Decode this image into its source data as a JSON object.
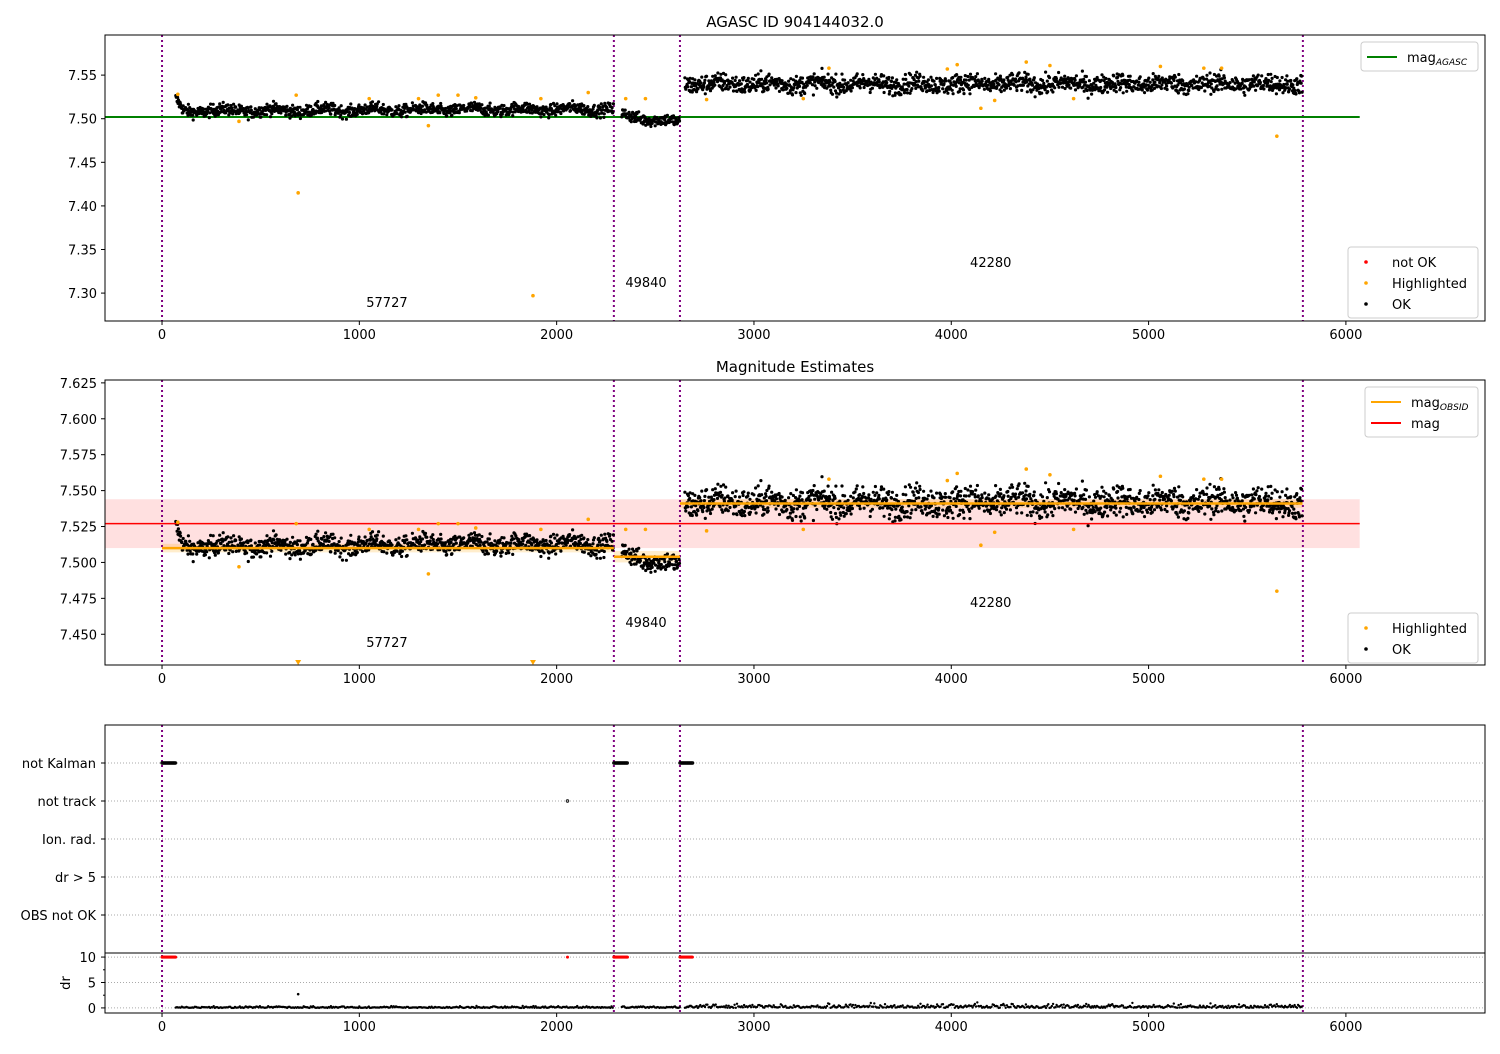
{
  "chart_data": [
    {
      "type": "scatter",
      "title": "AGASC ID 904144032.0",
      "xlim": [
        -289,
        6705
      ],
      "ylim": [
        7.268,
        7.596
      ],
      "xticks": [
        0,
        1000,
        2000,
        3000,
        4000,
        5000,
        6000
      ],
      "yticks": [
        7.3,
        7.35,
        7.4,
        7.45,
        7.5,
        7.55
      ],
      "ytick_decimals": 2,
      "vlines": [
        0,
        2290,
        2625,
        5782
      ],
      "segments": [
        {
          "x": [
            70,
            2290
          ],
          "mean": 7.509,
          "sd": 0.0035,
          "start_bump": 0.012,
          "slope": 1e-06
        },
        {
          "x": [
            2330,
            2625
          ],
          "mean": 7.504,
          "sd": 0.0035,
          "slope": -3e-05
        },
        {
          "x": [
            2650,
            5780
          ],
          "mean": 7.54,
          "sd": 0.0055,
          "slope": 0
        }
      ],
      "hlines": [
        {
          "label": "mag",
          "sub": "AGASC",
          "y": 7.502,
          "x": [
            -289,
            6070
          ],
          "color": "#008000"
        }
      ],
      "highlighted": [
        [
          80,
          7.528
        ],
        [
          390,
          7.497
        ],
        [
          680,
          7.527
        ],
        [
          690,
          7.415
        ],
        [
          1050,
          7.523
        ],
        [
          1300,
          7.523
        ],
        [
          1350,
          7.492
        ],
        [
          1400,
          7.527
        ],
        [
          1500,
          7.527
        ],
        [
          1590,
          7.524
        ],
        [
          1880,
          7.297
        ],
        [
          1920,
          7.523
        ],
        [
          2160,
          7.53
        ],
        [
          2350,
          7.523
        ],
        [
          2450,
          7.523
        ],
        [
          2760,
          7.522
        ],
        [
          3250,
          7.523
        ],
        [
          3380,
          7.558
        ],
        [
          3980,
          7.557
        ],
        [
          4030,
          7.562
        ],
        [
          4150,
          7.512
        ],
        [
          4220,
          7.521
        ],
        [
          4380,
          7.565
        ],
        [
          4500,
          7.561
        ],
        [
          4620,
          7.523
        ],
        [
          5060,
          7.56
        ],
        [
          5280,
          7.558
        ],
        [
          5370,
          7.558
        ],
        [
          5650,
          7.48
        ]
      ],
      "annotations": [
        {
          "text": "57727",
          "x": 1140,
          "y": 7.284
        },
        {
          "text": "49840",
          "x": 2453,
          "y": 7.307
        },
        {
          "text": "42280",
          "x": 4200,
          "y": 7.33
        }
      ],
      "legend_lines": [
        {
          "label": "mag",
          "sub": "AGASC",
          "color": "#008000"
        }
      ],
      "legend_points": [
        {
          "label": "not OK",
          "color": "#ff0000"
        },
        {
          "label": "Highlighted",
          "color": "#ffa500"
        },
        {
          "label": "OK",
          "color": "#000000"
        }
      ],
      "legend_placement": [
        "top-right",
        "bottom-right"
      ]
    },
    {
      "type": "scatter",
      "title": "Magnitude Estimates",
      "xlim": [
        -289,
        6705
      ],
      "ylim": [
        7.4286,
        7.627
      ],
      "xticks": [
        0,
        1000,
        2000,
        3000,
        4000,
        5000,
        6000
      ],
      "yticks": [
        7.45,
        7.475,
        7.5,
        7.525,
        7.55,
        7.575,
        7.6,
        7.625
      ],
      "ytick_decimals": 3,
      "vlines": [
        0,
        2290,
        2625,
        5782
      ],
      "mag": {
        "y": 7.527,
        "band": [
          7.51,
          7.544
        ],
        "x": [
          -289,
          6070
        ],
        "color": "#ff0000"
      },
      "mag_obsid": [
        {
          "x": [
            0,
            2290
          ],
          "y": 7.51,
          "band": [
            7.507,
            7.513
          ]
        },
        {
          "x": [
            2290,
            2625
          ],
          "y": 7.504,
          "band": [
            7.5,
            7.508
          ]
        },
        {
          "x": [
            2625,
            5780
          ],
          "y": 7.541,
          "band": [
            7.538,
            7.544
          ]
        }
      ],
      "annotations": [
        {
          "text": "57727",
          "x": 1140,
          "y": 7.441
        },
        {
          "text": "49840",
          "x": 2453,
          "y": 7.455
        },
        {
          "text": "42280",
          "x": 4200,
          "y": 7.469
        }
      ],
      "legend_lines": [
        {
          "label": "mag",
          "sub": "OBSID",
          "color": "#ffa500"
        },
        {
          "label": "mag",
          "sub": "",
          "color": "#ff0000"
        }
      ],
      "legend_points": [
        {
          "label": "Highlighted",
          "color": "#ffa500"
        },
        {
          "label": "OK",
          "color": "#000000"
        }
      ],
      "legend_placement": [
        "top-right",
        "bottom-right"
      ]
    },
    {
      "type": "scatter",
      "title": "",
      "xlim": [
        -289,
        6705
      ],
      "flag_labels": [
        "OBS not OK",
        "dr > 5",
        "Ion. rad.",
        "not track",
        "not Kalman"
      ],
      "flags": {
        "not Kalman": [
          [
            0,
            70
          ],
          [
            2290,
            2360
          ],
          [
            2625,
            2690
          ]
        ],
        "not track": [
          [
            2055,
            2055
          ]
        ]
      },
      "dr": {
        "ylabel": "dr",
        "ylim": [
          -1,
          10.8
        ],
        "yticks": [
          0,
          5,
          10
        ],
        "high_value": 10,
        "high_ranges": [
          [
            0,
            70
          ],
          [
            2290,
            2360
          ],
          [
            2625,
            2690
          ],
          [
            2055,
            2055
          ]
        ],
        "outliers": [
          [
            690,
            2.7
          ]
        ]
      },
      "xticks": [
        0,
        1000,
        2000,
        3000,
        4000,
        5000,
        6000
      ],
      "vlines": [
        0,
        2290,
        2625,
        5782
      ]
    }
  ]
}
